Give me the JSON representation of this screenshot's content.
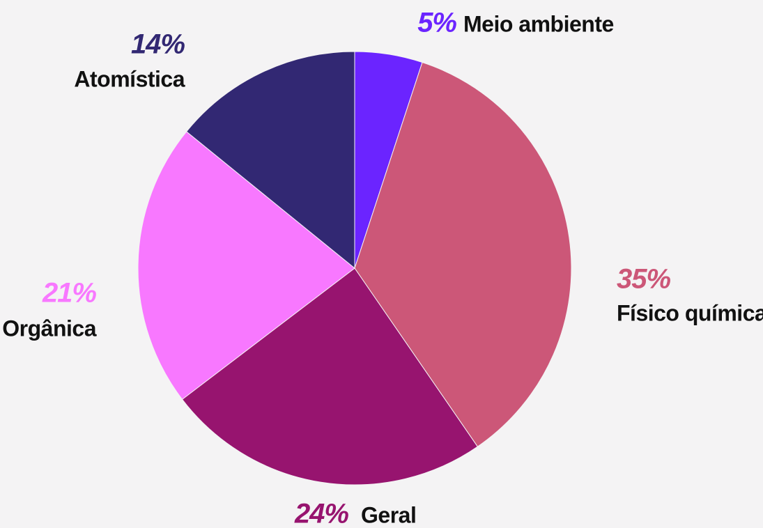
{
  "chart_data": {
    "type": "pie",
    "categories": [
      "Meio ambiente",
      "Físico química",
      "Geral",
      "Orgânica",
      "Atomística"
    ],
    "values": [
      5,
      35,
      24,
      21,
      14
    ],
    "value_labels": [
      "5%",
      "35%",
      "24%",
      "21%",
      "14%"
    ],
    "colors": [
      "#6b24ff",
      "#cc5778",
      "#97146f",
      "#f878ff",
      "#322873"
    ]
  }
}
